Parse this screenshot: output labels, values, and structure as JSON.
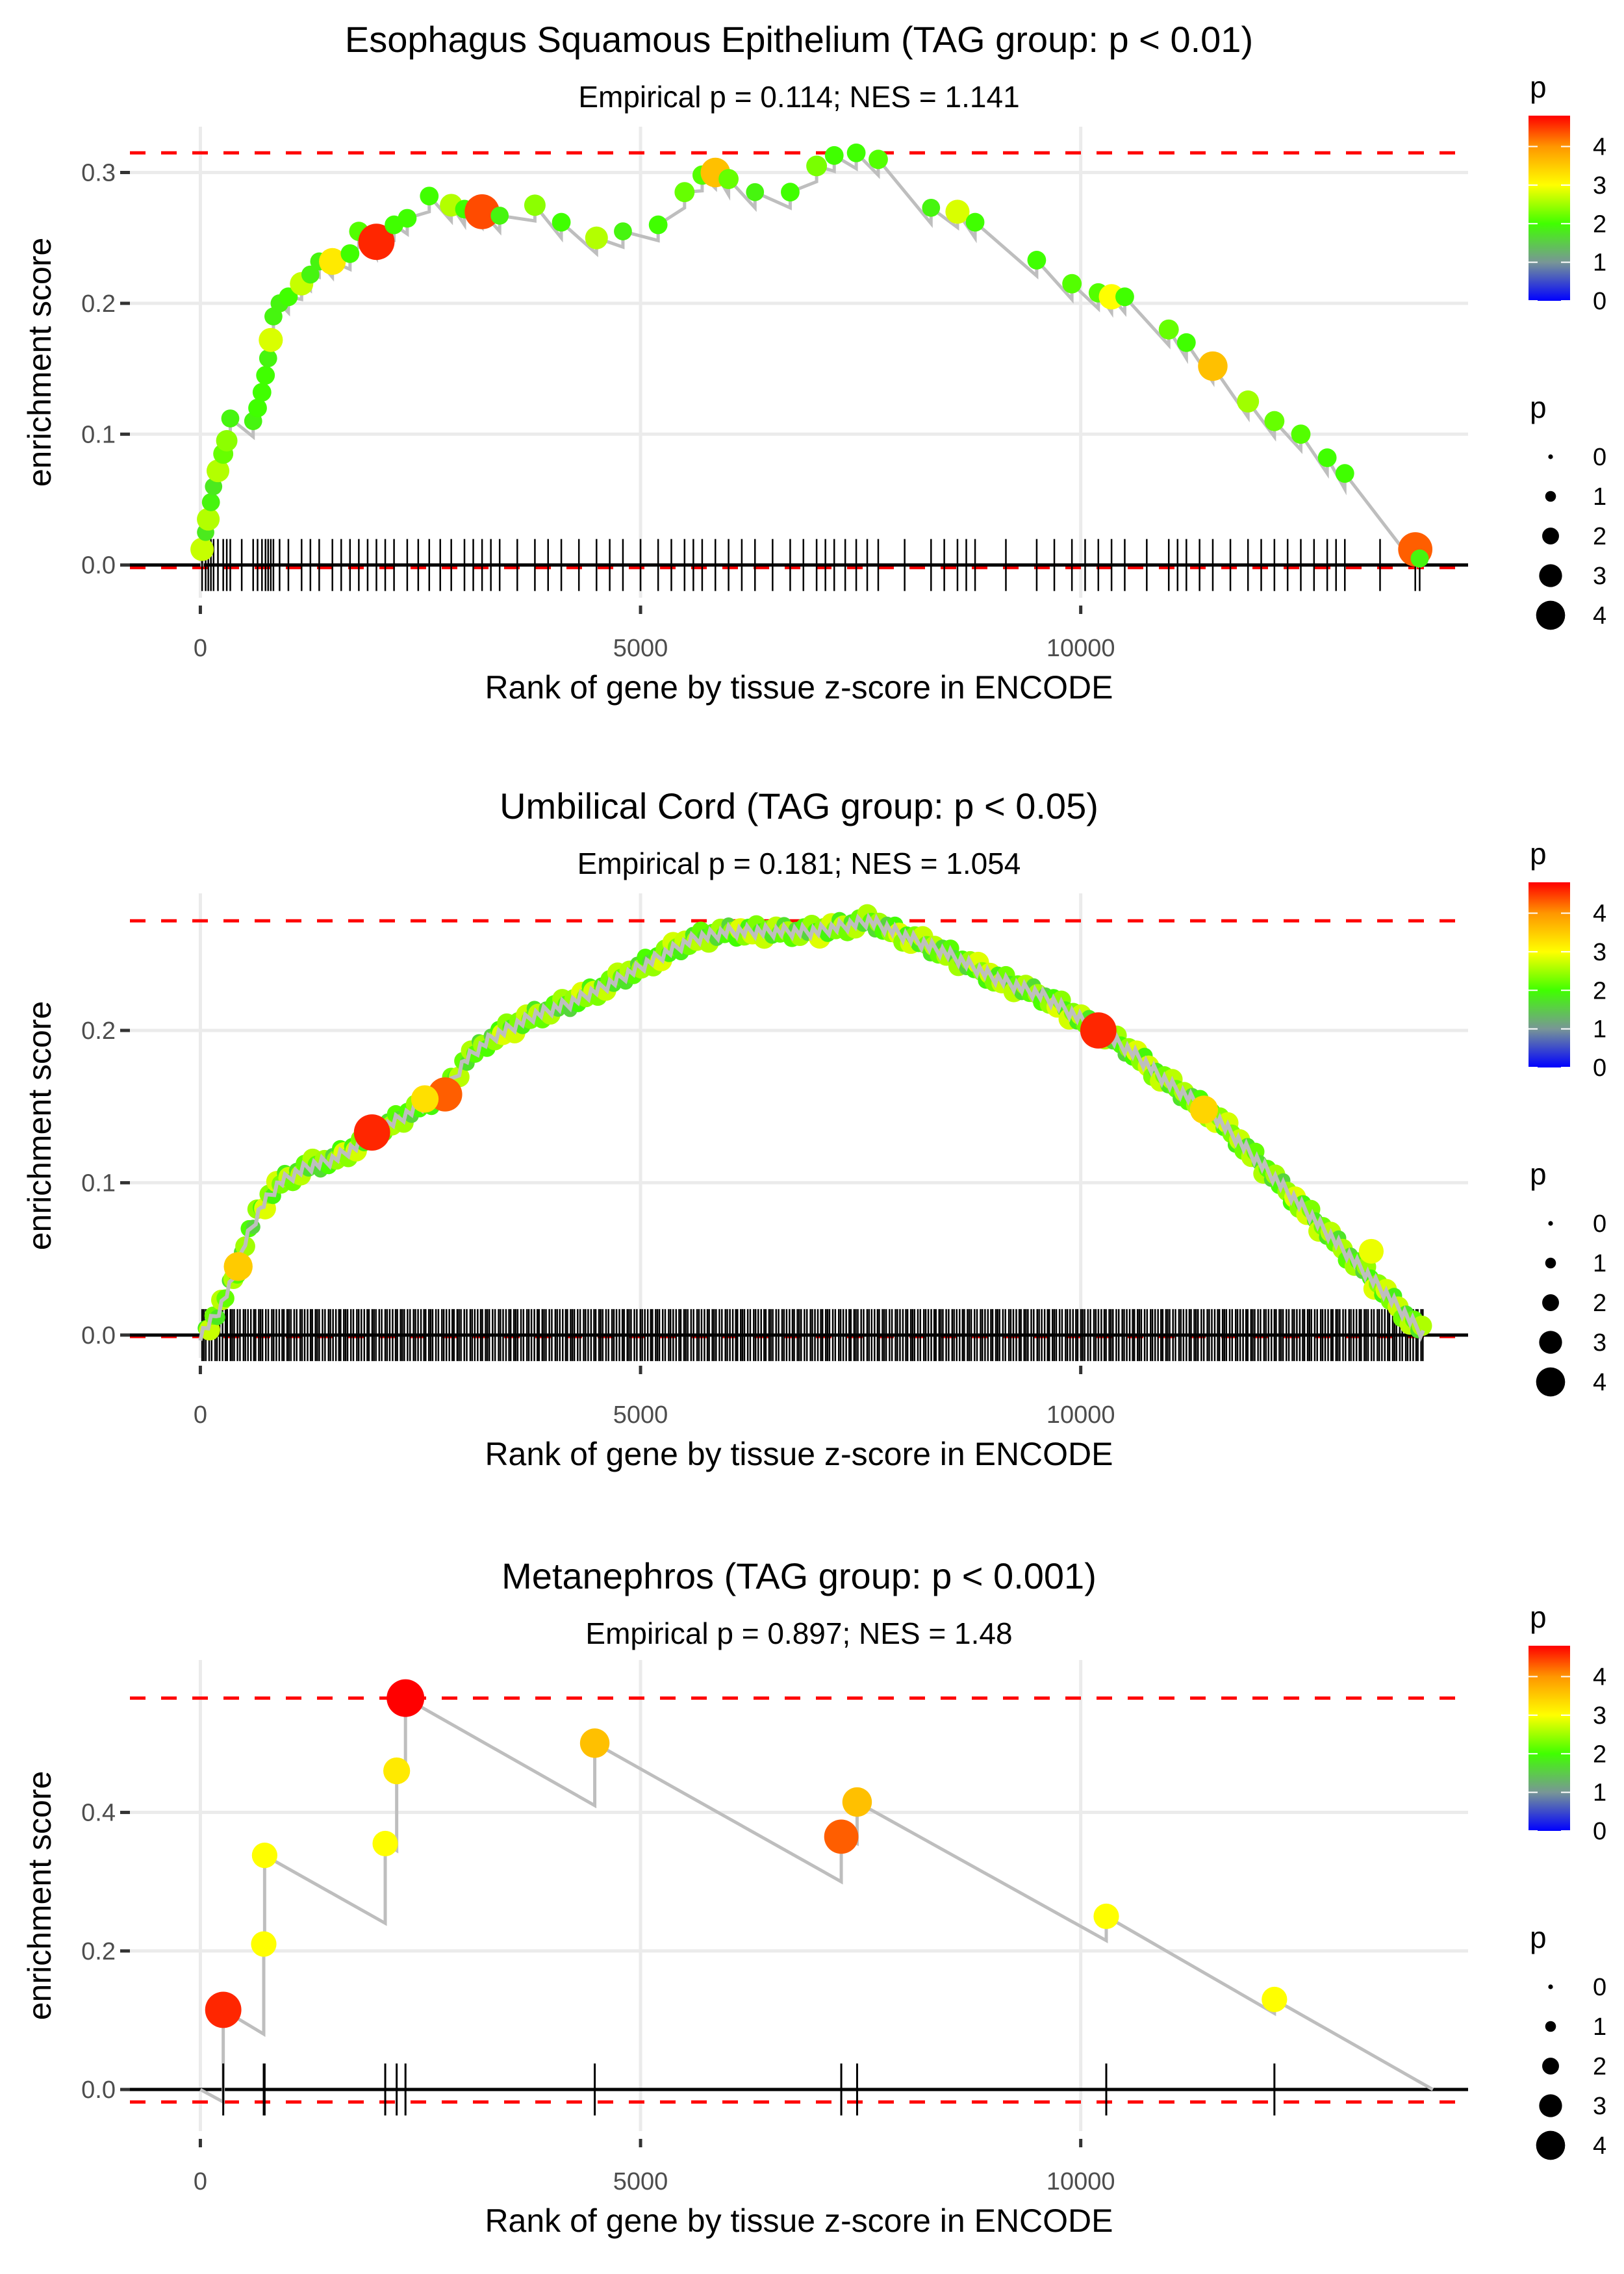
{
  "chart_data": [
    {
      "type": "line",
      "title": "Esophagus Squamous Epithelium (TAG group: p < 0.01)",
      "subtitle": "Empirical p = 0.114; NES = 1.141",
      "xlabel": "Rank of gene by tissue z-score in ENCODE",
      "ylabel": "enrichment score",
      "xlim": [
        -800,
        14400
      ],
      "ylim": [
        -0.025,
        0.335
      ],
      "xticks": [
        0,
        5000,
        10000
      ],
      "xtick_labels": [
        "0",
        "5000",
        "10000"
      ],
      "yticks": [
        0.0,
        0.1,
        0.2,
        0.3
      ],
      "ytick_labels": [
        "0.0",
        "0.1",
        "0.2",
        "0.3"
      ],
      "max_es": 0.315,
      "min_es": -0.002,
      "n_genes": 14000,
      "hits": [
        {
          "x": 20,
          "y": 0.012,
          "p": 2.7
        },
        {
          "x": 60,
          "y": 0.025,
          "p": 1.8
        },
        {
          "x": 90,
          "y": 0.035,
          "p": 2.6
        },
        {
          "x": 120,
          "y": 0.048,
          "p": 1.9
        },
        {
          "x": 150,
          "y": 0.06,
          "p": 1.8
        },
        {
          "x": 200,
          "y": 0.072,
          "p": 2.6
        },
        {
          "x": 260,
          "y": 0.085,
          "p": 2.2
        },
        {
          "x": 300,
          "y": 0.095,
          "p": 2.4
        },
        {
          "x": 340,
          "y": 0.112,
          "p": 1.9
        },
        {
          "x": 600,
          "y": 0.11,
          "p": 1.9
        },
        {
          "x": 650,
          "y": 0.12,
          "p": 2.0
        },
        {
          "x": 700,
          "y": 0.132,
          "p": 2.0
        },
        {
          "x": 740,
          "y": 0.145,
          "p": 2.0
        },
        {
          "x": 770,
          "y": 0.158,
          "p": 1.9
        },
        {
          "x": 800,
          "y": 0.172,
          "p": 2.8
        },
        {
          "x": 830,
          "y": 0.19,
          "p": 1.9
        },
        {
          "x": 900,
          "y": 0.2,
          "p": 1.9
        },
        {
          "x": 1000,
          "y": 0.205,
          "p": 2.0
        },
        {
          "x": 1150,
          "y": 0.215,
          "p": 2.7
        },
        {
          "x": 1250,
          "y": 0.222,
          "p": 1.9
        },
        {
          "x": 1350,
          "y": 0.232,
          "p": 1.9
        },
        {
          "x": 1500,
          "y": 0.232,
          "p": 3.2
        },
        {
          "x": 1700,
          "y": 0.238,
          "p": 2.0
        },
        {
          "x": 1800,
          "y": 0.255,
          "p": 2.1
        },
        {
          "x": 2000,
          "y": 0.247,
          "p": 4.6
        },
        {
          "x": 2200,
          "y": 0.26,
          "p": 2.0
        },
        {
          "x": 2350,
          "y": 0.265,
          "p": 2.0
        },
        {
          "x": 2600,
          "y": 0.282,
          "p": 2.0
        },
        {
          "x": 2850,
          "y": 0.275,
          "p": 2.6
        },
        {
          "x": 3000,
          "y": 0.272,
          "p": 2.0
        },
        {
          "x": 3200,
          "y": 0.27,
          "p": 4.4
        },
        {
          "x": 3400,
          "y": 0.267,
          "p": 1.9
        },
        {
          "x": 3800,
          "y": 0.275,
          "p": 2.4
        },
        {
          "x": 4100,
          "y": 0.262,
          "p": 2.0
        },
        {
          "x": 4500,
          "y": 0.25,
          "p": 2.6
        },
        {
          "x": 4800,
          "y": 0.255,
          "p": 1.9
        },
        {
          "x": 5200,
          "y": 0.26,
          "p": 2.0
        },
        {
          "x": 5500,
          "y": 0.285,
          "p": 2.2
        },
        {
          "x": 5700,
          "y": 0.298,
          "p": 2.1
        },
        {
          "x": 5850,
          "y": 0.3,
          "p": 3.6
        },
        {
          "x": 6000,
          "y": 0.295,
          "p": 2.2
        },
        {
          "x": 6300,
          "y": 0.285,
          "p": 1.9
        },
        {
          "x": 6700,
          "y": 0.285,
          "p": 2.0
        },
        {
          "x": 7000,
          "y": 0.305,
          "p": 2.3
        },
        {
          "x": 7200,
          "y": 0.313,
          "p": 2.0
        },
        {
          "x": 7450,
          "y": 0.315,
          "p": 2.0
        },
        {
          "x": 7700,
          "y": 0.31,
          "p": 2.1
        },
        {
          "x": 8300,
          "y": 0.273,
          "p": 1.9
        },
        {
          "x": 8600,
          "y": 0.27,
          "p": 2.8
        },
        {
          "x": 8800,
          "y": 0.262,
          "p": 2.0
        },
        {
          "x": 9500,
          "y": 0.233,
          "p": 2.0
        },
        {
          "x": 9900,
          "y": 0.215,
          "p": 2.1
        },
        {
          "x": 10200,
          "y": 0.208,
          "p": 2.1
        },
        {
          "x": 10350,
          "y": 0.205,
          "p": 3.0
        },
        {
          "x": 10500,
          "y": 0.205,
          "p": 2.0
        },
        {
          "x": 11000,
          "y": 0.18,
          "p": 2.2
        },
        {
          "x": 11200,
          "y": 0.17,
          "p": 2.0
        },
        {
          "x": 11500,
          "y": 0.152,
          "p": 3.6
        },
        {
          "x": 11900,
          "y": 0.125,
          "p": 2.5
        },
        {
          "x": 12200,
          "y": 0.11,
          "p": 2.2
        },
        {
          "x": 12500,
          "y": 0.1,
          "p": 2.1
        },
        {
          "x": 12800,
          "y": 0.082,
          "p": 2.0
        },
        {
          "x": 13000,
          "y": 0.07,
          "p": 2.0
        },
        {
          "x": 13800,
          "y": 0.012,
          "p": 4.3
        },
        {
          "x": 13850,
          "y": 0.005,
          "p": 1.9
        }
      ]
    },
    {
      "type": "line",
      "title": "Umbilical Cord (TAG group: p < 0.05)",
      "subtitle": "Empirical p = 0.181; NES = 1.054",
      "xlabel": "Rank of gene by tissue z-score in ENCODE",
      "ylabel": "enrichment score",
      "xlim": [
        -800,
        14400
      ],
      "ylim": [
        -0.015,
        0.29
      ],
      "xticks": [
        0,
        5000,
        10000
      ],
      "xtick_labels": [
        "0",
        "5000",
        "10000"
      ],
      "yticks": [
        0.0,
        0.1,
        0.2
      ],
      "ytick_labels": [
        "0.0",
        "0.1",
        "0.2"
      ],
      "max_es": 0.272,
      "min_es": -0.001,
      "n_genes": 14000,
      "curve": [
        [
          0,
          0.0
        ],
        [
          200,
          0.015
        ],
        [
          400,
          0.04
        ],
        [
          500,
          0.06
        ],
        [
          700,
          0.085
        ],
        [
          900,
          0.1
        ],
        [
          1200,
          0.11
        ],
        [
          1500,
          0.115
        ],
        [
          1800,
          0.125
        ],
        [
          2000,
          0.133
        ],
        [
          2400,
          0.147
        ],
        [
          2800,
          0.16
        ],
        [
          3000,
          0.18
        ],
        [
          3300,
          0.195
        ],
        [
          3800,
          0.21
        ],
        [
          4200,
          0.218
        ],
        [
          4700,
          0.232
        ],
        [
          5100,
          0.245
        ],
        [
          5600,
          0.26
        ],
        [
          6000,
          0.265
        ],
        [
          6500,
          0.265
        ],
        [
          7000,
          0.265
        ],
        [
          7600,
          0.272
        ],
        [
          8000,
          0.262
        ],
        [
          8500,
          0.25
        ],
        [
          9000,
          0.235
        ],
        [
          9600,
          0.222
        ],
        [
          10200,
          0.2
        ],
        [
          10600,
          0.185
        ],
        [
          11000,
          0.165
        ],
        [
          11500,
          0.145
        ],
        [
          12000,
          0.115
        ],
        [
          12500,
          0.085
        ],
        [
          13000,
          0.055
        ],
        [
          13500,
          0.025
        ],
        [
          13900,
          0.0
        ]
      ],
      "highlight_hits": [
        {
          "x": 430,
          "y": 0.045,
          "p": 3.5
        },
        {
          "x": 1950,
          "y": 0.133,
          "p": 4.6
        },
        {
          "x": 2780,
          "y": 0.158,
          "p": 4.3
        },
        {
          "x": 2550,
          "y": 0.155,
          "p": 3.3
        },
        {
          "x": 10200,
          "y": 0.2,
          "p": 4.6
        },
        {
          "x": 11400,
          "y": 0.148,
          "p": 3.4
        },
        {
          "x": 13300,
          "y": 0.055,
          "p": 2.9
        }
      ]
    },
    {
      "type": "line",
      "title": "Metanephros (TAG group: p < 0.001)",
      "subtitle": "Empirical p = 0.897; NES = 1.48",
      "xlabel": "Rank of gene by tissue z-score in ENCODE",
      "ylabel": "enrichment score",
      "xlim": [
        -800,
        14400
      ],
      "ylim": [
        -0.06,
        0.62
      ],
      "xticks": [
        0,
        5000,
        10000
      ],
      "xtick_labels": [
        "0",
        "5000",
        "10000"
      ],
      "yticks": [
        0.0,
        0.2,
        0.4
      ],
      "ytick_labels": [
        "0.0",
        "0.2",
        "0.4"
      ],
      "max_es": 0.565,
      "min_es": -0.018,
      "n_genes": 14000,
      "hits": [
        {
          "x": 260,
          "y": 0.115,
          "low": -0.018,
          "p": 4.6
        },
        {
          "x": 720,
          "y": 0.21,
          "low": 0.08,
          "p": 3.0
        },
        {
          "x": 730,
          "y": 0.338,
          "low": 0.21,
          "p": 3.0
        },
        {
          "x": 2100,
          "y": 0.355,
          "low": 0.24,
          "p": 3.0
        },
        {
          "x": 2230,
          "y": 0.46,
          "low": 0.345,
          "p": 3.2
        },
        {
          "x": 2330,
          "y": 0.565,
          "low": 0.455,
          "p": 4.8
        },
        {
          "x": 4480,
          "y": 0.5,
          "low": 0.41,
          "p": 3.6
        },
        {
          "x": 7280,
          "y": 0.365,
          "low": 0.3,
          "p": 4.3
        },
        {
          "x": 7460,
          "y": 0.415,
          "low": 0.355,
          "p": 3.6
        },
        {
          "x": 10290,
          "y": 0.25,
          "low": 0.215,
          "p": 3.0
        },
        {
          "x": 12200,
          "y": 0.13,
          "low": 0.11,
          "p": 3.0
        }
      ],
      "end": {
        "x": 14000,
        "y": 0.0
      }
    }
  ],
  "legends": {
    "color_title": "p",
    "color_ticks": [
      "4",
      "3",
      "2",
      "1",
      "0"
    ],
    "color_range": [
      0,
      4.8
    ],
    "size_title": "p",
    "size_ticks": [
      "0",
      "1",
      "2",
      "3",
      "4"
    ]
  }
}
